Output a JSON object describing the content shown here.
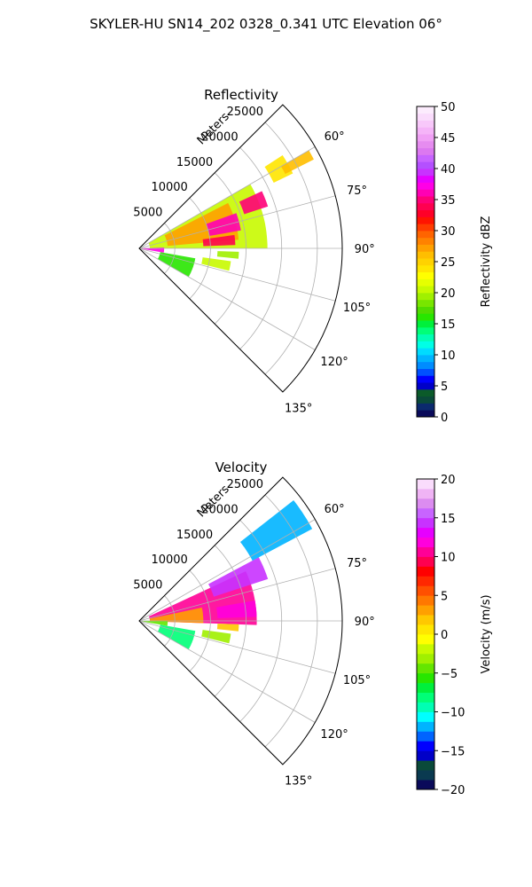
{
  "figure": {
    "suptitle": "SKYLER-HU  SN14_202  0328_0.341 UTC Elevation 06°"
  },
  "chart_data": [
    {
      "type": "heatmap",
      "projection": "polar-sector",
      "title": "Reflectivity",
      "radial_label": "Meters",
      "radial_ticks": [
        "5000",
        "10000",
        "15000",
        "20000",
        "25000"
      ],
      "radial_tick_values": [
        5000,
        10000,
        15000,
        20000,
        25000
      ],
      "angle_ticks": [
        "60°",
        "75°",
        "90°",
        "105°",
        "120°",
        "135°"
      ],
      "angle_tick_values": [
        60,
        75,
        90,
        105,
        120,
        135
      ],
      "azimuth_range_deg": [
        45,
        135
      ],
      "range_max_m": 28500,
      "grid": true,
      "colorbar": {
        "label": "Reflectivity dBZ",
        "min": 0,
        "max": 50,
        "ticks": [
          "0",
          "5",
          "10",
          "15",
          "20",
          "25",
          "30",
          "35",
          "40",
          "45",
          "50"
        ],
        "colors": [
          "#0a0a5a",
          "#0b2a6e",
          "#0a4a3a",
          "#0b5b2a",
          "#0000c8",
          "#0000ff",
          "#0050ff",
          "#008cff",
          "#00b4ff",
          "#00dcff",
          "#00ffe6",
          "#00ffb4",
          "#00ff78",
          "#00f03c",
          "#28e600",
          "#50dc00",
          "#78e600",
          "#a0f000",
          "#c8fa00",
          "#e6ff00",
          "#ffff00",
          "#ffe600",
          "#ffd200",
          "#ffbe00",
          "#ffa000",
          "#ff8200",
          "#ff6400",
          "#ff3c00",
          "#ff1400",
          "#ff0028",
          "#ff0050",
          "#ff0078",
          "#ff00b4",
          "#ff00e6",
          "#e600ff",
          "#c832ff",
          "#b450ff",
          "#c864ff",
          "#dc78f0",
          "#e68cf0",
          "#f0a0f5",
          "#f5b4f8",
          "#f8c8fa",
          "#fadcfc",
          "#fcecfd"
        ]
      },
      "echoes": [
        {
          "az": [
            60,
            90
          ],
          "r": [
            1500,
            18000
          ],
          "value": 20
        },
        {
          "az": [
            63,
            85
          ],
          "r": [
            4000,
            14000
          ],
          "value": 27
        },
        {
          "az": [
            70,
            80
          ],
          "r": [
            10000,
            14500
          ],
          "value": 36
        },
        {
          "az": [
            82,
            88
          ],
          "r": [
            9000,
            13500
          ],
          "value": 34
        },
        {
          "az": [
            65,
            72
          ],
          "r": [
            15500,
            19000
          ],
          "value": 35
        },
        {
          "az": [
            57,
            64
          ],
          "r": [
            21000,
            24000
          ],
          "value": 24
        },
        {
          "az": [
            60,
            63
          ],
          "r": [
            23000,
            27500
          ],
          "value": 26
        },
        {
          "az": [
            92,
            96
          ],
          "r": [
            11000,
            14000
          ],
          "value": 19
        },
        {
          "az": [
            98,
            104
          ],
          "r": [
            9000,
            13000
          ],
          "value": 21
        },
        {
          "az": [
            100,
            120
          ],
          "r": [
            3000,
            8000
          ],
          "value": 16
        },
        {
          "az": [
            88,
            100
          ],
          "r": [
            300,
            3500
          ],
          "value": 37
        }
      ]
    },
    {
      "type": "heatmap",
      "projection": "polar-sector",
      "title": "Velocity",
      "radial_label": "Meters",
      "radial_ticks": [
        "5000",
        "10000",
        "15000",
        "20000",
        "25000"
      ],
      "radial_tick_values": [
        5000,
        10000,
        15000,
        20000,
        25000
      ],
      "angle_ticks": [
        "60°",
        "75°",
        "90°",
        "105°",
        "120°",
        "135°"
      ],
      "angle_tick_values": [
        60,
        75,
        90,
        105,
        120,
        135
      ],
      "azimuth_range_deg": [
        45,
        135
      ],
      "range_max_m": 28500,
      "grid": true,
      "colorbar": {
        "label": "Velocity (m/s)",
        "min": -20,
        "max": 20,
        "ticks": [
          "−20",
          "−15",
          "−10",
          "−5",
          "0",
          "5",
          "10",
          "15",
          "20"
        ],
        "colors": [
          "#0a0a5a",
          "#0a3a50",
          "#0a4a3a",
          "#0000c8",
          "#0000ff",
          "#0064ff",
          "#00b4ff",
          "#00ffff",
          "#00ffb4",
          "#00ff78",
          "#00f03c",
          "#28e600",
          "#64e600",
          "#a0f000",
          "#c8fa00",
          "#ffff00",
          "#ffe600",
          "#ffc800",
          "#ffa000",
          "#ff7800",
          "#ff5000",
          "#ff2800",
          "#ff0000",
          "#ff0050",
          "#ff0096",
          "#ff00dc",
          "#e600ff",
          "#c832ff",
          "#c864ff",
          "#dc8cf0",
          "#f0b4f5",
          "#fadcfc"
        ]
      },
      "echoes": [
        {
          "az": [
            65,
            92
          ],
          "r": [
            1500,
            16500
          ],
          "value": 10
        },
        {
          "az": [
            78,
            92
          ],
          "r": [
            1500,
            9000
          ],
          "value": 3
        },
        {
          "az": [
            62,
            72
          ],
          "r": [
            11000,
            19000
          ],
          "value": 14
        },
        {
          "az": [
            80,
            88
          ],
          "r": [
            11000,
            16500
          ],
          "value": 12
        },
        {
          "az": [
            52,
            62
          ],
          "r": [
            18000,
            27500
          ],
          "value": -12
        },
        {
          "az": [
            92,
            96
          ],
          "r": [
            11000,
            14000
          ],
          "value": 2
        },
        {
          "az": [
            98,
            104
          ],
          "r": [
            9000,
            13000
          ],
          "value": -3
        },
        {
          "az": [
            100,
            120
          ],
          "r": [
            3000,
            8000
          ],
          "value": -8
        },
        {
          "az": [
            90,
            100
          ],
          "r": [
            300,
            4000
          ],
          "value": -4
        }
      ]
    }
  ]
}
